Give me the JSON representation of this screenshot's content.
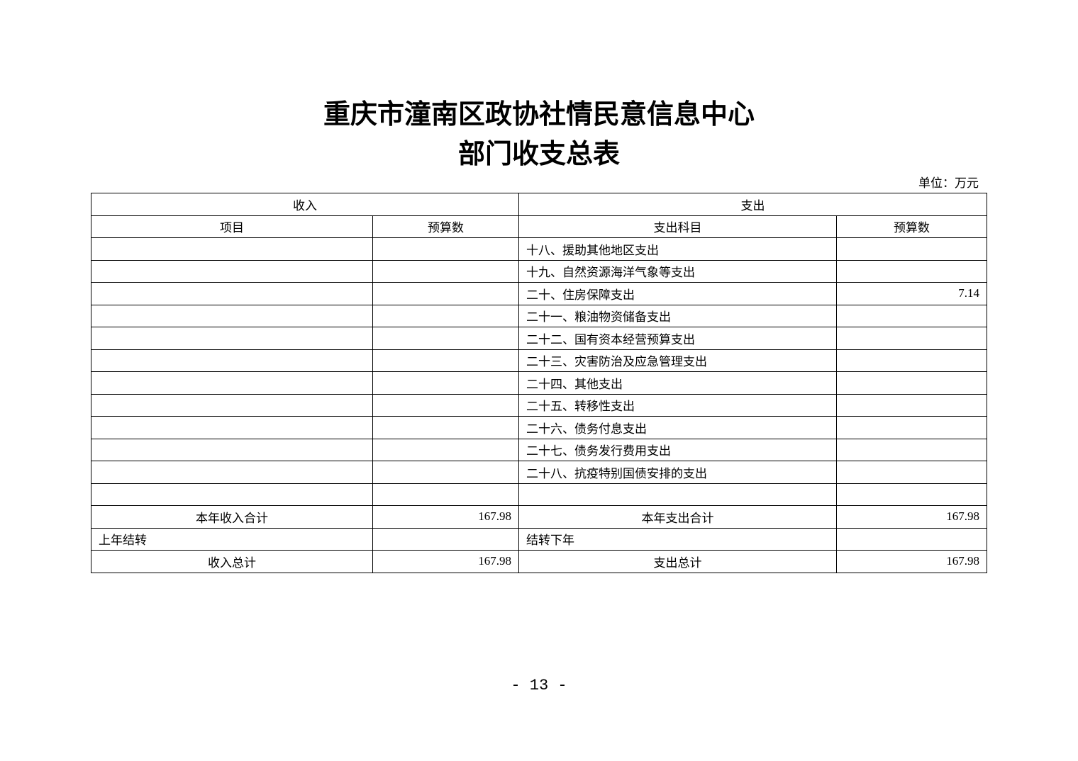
{
  "title_line1": "重庆市潼南区政协社情民意信息中心",
  "title_line2": "部门收支总表",
  "unit": "单位：万元",
  "header": {
    "income": "收入",
    "expense": "支出",
    "item": "项目",
    "budget": "预算数",
    "expense_item": "支出科目",
    "expense_budget": "预算数"
  },
  "rows": [
    {
      "income_item": "",
      "income_value": "",
      "expense_item": "十八、援助其他地区支出",
      "expense_value": ""
    },
    {
      "income_item": "",
      "income_value": "",
      "expense_item": "十九、自然资源海洋气象等支出",
      "expense_value": ""
    },
    {
      "income_item": "",
      "income_value": "",
      "expense_item": "二十、住房保障支出",
      "expense_value": "7.14"
    },
    {
      "income_item": "",
      "income_value": "",
      "expense_item": "二十一、粮油物资储备支出",
      "expense_value": ""
    },
    {
      "income_item": "",
      "income_value": "",
      "expense_item": "二十二、国有资本经营预算支出",
      "expense_value": ""
    },
    {
      "income_item": "",
      "income_value": "",
      "expense_item": "二十三、灾害防治及应急管理支出",
      "expense_value": ""
    },
    {
      "income_item": "",
      "income_value": "",
      "expense_item": "二十四、其他支出",
      "expense_value": ""
    },
    {
      "income_item": "",
      "income_value": "",
      "expense_item": "二十五、转移性支出",
      "expense_value": ""
    },
    {
      "income_item": "",
      "income_value": "",
      "expense_item": "二十六、债务付息支出",
      "expense_value": ""
    },
    {
      "income_item": "",
      "income_value": "",
      "expense_item": "二十七、债务发行费用支出",
      "expense_value": ""
    },
    {
      "income_item": "",
      "income_value": "",
      "expense_item": "二十八、抗疫特别国债安排的支出",
      "expense_value": ""
    },
    {
      "income_item": "",
      "income_value": "",
      "expense_item": "",
      "expense_value": ""
    }
  ],
  "totals": {
    "year_income_label": "本年收入合计",
    "year_income": "167.98",
    "year_expense_label": "本年支出合计",
    "year_expense": "167.98",
    "carry_in_label": "上年结转",
    "carry_in": "",
    "carry_out_label": "结转下年",
    "carry_out": "",
    "total_income_label": "收入总计",
    "total_income": "167.98",
    "total_expense_label": "支出总计",
    "total_expense": "167.98"
  },
  "page_number": "- 13 -"
}
